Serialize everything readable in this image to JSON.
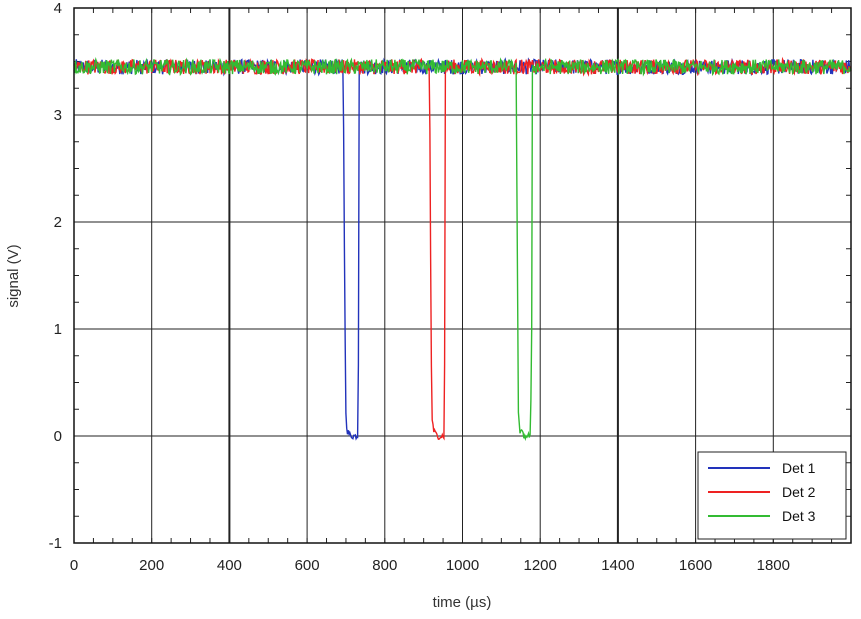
{
  "chart_data": {
    "type": "line",
    "xlabel": "time (µs)",
    "ylabel": "signal (V)",
    "xlim": [
      0,
      2000
    ],
    "ylim": [
      -1,
      4
    ],
    "x_ticks": [
      "0",
      "200",
      "400",
      "600",
      "800",
      "1000",
      "1200",
      "1400",
      "1600",
      "1800"
    ],
    "y_ticks": [
      "-1",
      "0",
      "1",
      "2",
      "3",
      "4"
    ],
    "grid": true,
    "legend_position": "bottom-right",
    "baseline": 3.45,
    "noise": 0.07,
    "series": [
      {
        "name": "Det 1",
        "color": "#2233bb",
        "points": [
          [
            0,
            3.45
          ],
          [
            693,
            3.45
          ],
          [
            697,
            1.2
          ],
          [
            700,
            0.2
          ],
          [
            703,
            0.05
          ],
          [
            712,
            0.0
          ],
          [
            720,
            0.0
          ],
          [
            730,
            0.0
          ],
          [
            733,
            1.0
          ],
          [
            734,
            3.45
          ],
          [
            2000,
            3.45
          ]
        ]
      },
      {
        "name": "Det 2",
        "color": "#ee2222",
        "points": [
          [
            0,
            3.45
          ],
          [
            915,
            3.45
          ],
          [
            919,
            1.1
          ],
          [
            921,
            0.2
          ],
          [
            925,
            0.05
          ],
          [
            935,
            0.0
          ],
          [
            945,
            0.0
          ],
          [
            952,
            0.0
          ],
          [
            955,
            1.0
          ],
          [
            956,
            3.45
          ],
          [
            2000,
            3.45
          ]
        ]
      },
      {
        "name": "Det 3",
        "color": "#33bb33",
        "points": [
          [
            0,
            3.45
          ],
          [
            1138,
            3.45
          ],
          [
            1142,
            1.2
          ],
          [
            1144,
            0.2
          ],
          [
            1148,
            0.05
          ],
          [
            1158,
            0.0
          ],
          [
            1165,
            0.0
          ],
          [
            1175,
            0.0
          ],
          [
            1178,
            1.0
          ],
          [
            1179,
            3.45
          ],
          [
            2000,
            3.45
          ]
        ]
      }
    ]
  }
}
